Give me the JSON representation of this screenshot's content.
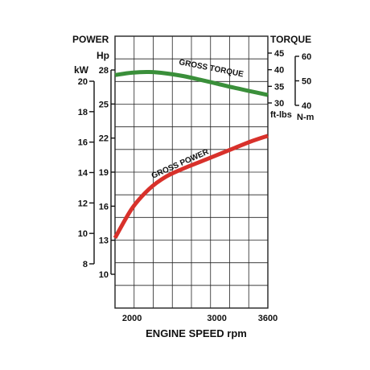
{
  "chart_data": {
    "type": "line",
    "xlabel": "ENGINE SPEED rpm",
    "x_ticks": [
      2000,
      3000,
      3600
    ],
    "xlim": [
      1800,
      3600
    ],
    "left_axis": {
      "title": "POWER",
      "unit_kw": "kW",
      "unit_hp": "Hp",
      "kw_ticks": [
        20,
        18,
        16,
        14,
        12,
        10,
        8
      ],
      "hp_ticks": [
        28,
        25,
        22,
        19,
        16,
        13,
        10
      ],
      "hp_range": [
        7.5,
        28.8
      ]
    },
    "right_axis": {
      "title": "TORQUE",
      "unit_ftlbs": "ft-lbs",
      "unit_nm": "N-m",
      "ftlbs_ticks": [
        45,
        40,
        35,
        30
      ],
      "nm_ticks": [
        60,
        50,
        40
      ],
      "ftlbs_range": [
        30,
        45
      ]
    },
    "series": [
      {
        "name": "GROSS TORQUE",
        "axis": "right",
        "unit": "ft-lbs",
        "color": "#3a8f3a",
        "x": [
          1800,
          2000,
          2200,
          2400,
          2600,
          2800,
          3000,
          3200,
          3400,
          3600
        ],
        "y": [
          38.4,
          39.1,
          39.3,
          38.9,
          38.1,
          37.0,
          35.8,
          34.6,
          33.5,
          32.4
        ]
      },
      {
        "name": "GROSS POWER",
        "axis": "left",
        "unit": "Hp",
        "color": "#d8312b",
        "x": [
          1800,
          2000,
          2200,
          2400,
          2600,
          2800,
          3000,
          3200,
          3400,
          3600
        ],
        "y": [
          13.2,
          15.8,
          17.5,
          18.6,
          19.3,
          19.9,
          20.5,
          21.1,
          21.7,
          22.2
        ]
      }
    ],
    "grid": true
  }
}
